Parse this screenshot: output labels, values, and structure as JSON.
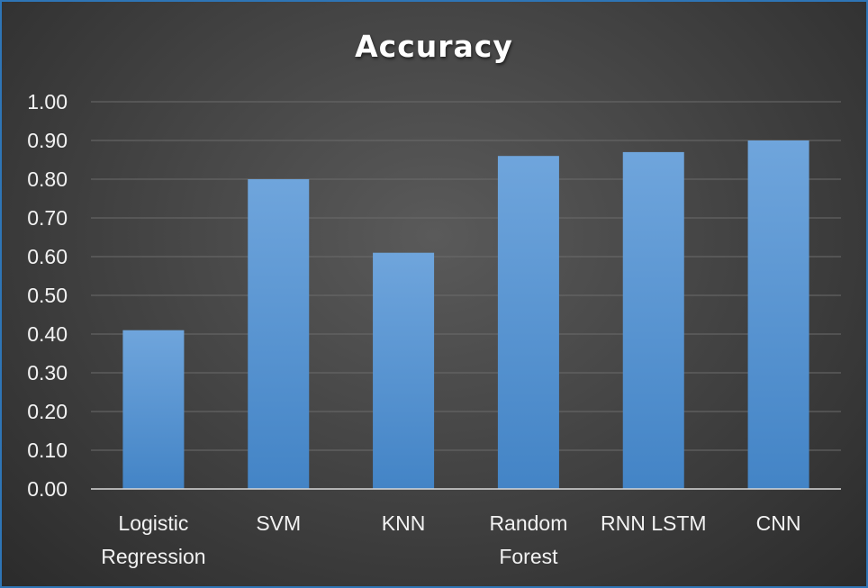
{
  "chart_data": {
    "type": "bar",
    "title": "Accuracy",
    "xlabel": "",
    "ylabel": "",
    "categories": [
      [
        "Logistic",
        "Regression"
      ],
      [
        "SVM"
      ],
      [
        "KNN"
      ],
      [
        "Random",
        "Forest"
      ],
      [
        "RNN LSTM"
      ],
      [
        "CNN"
      ]
    ],
    "values": [
      0.41,
      0.8,
      0.61,
      0.86,
      0.87,
      0.9
    ],
    "ylim": [
      0.0,
      1.0
    ],
    "yticks": [
      "0.00",
      "0.10",
      "0.20",
      "0.30",
      "0.40",
      "0.50",
      "0.60",
      "0.70",
      "0.80",
      "0.90",
      "1.00"
    ],
    "grid": true,
    "legend": "none",
    "colors": {
      "bar_top": "#6fa5dc",
      "bar_bottom": "#4384c6",
      "grid": "#6b6b6b",
      "axis": "#d9d9d9",
      "border": "#2e75b6"
    }
  }
}
